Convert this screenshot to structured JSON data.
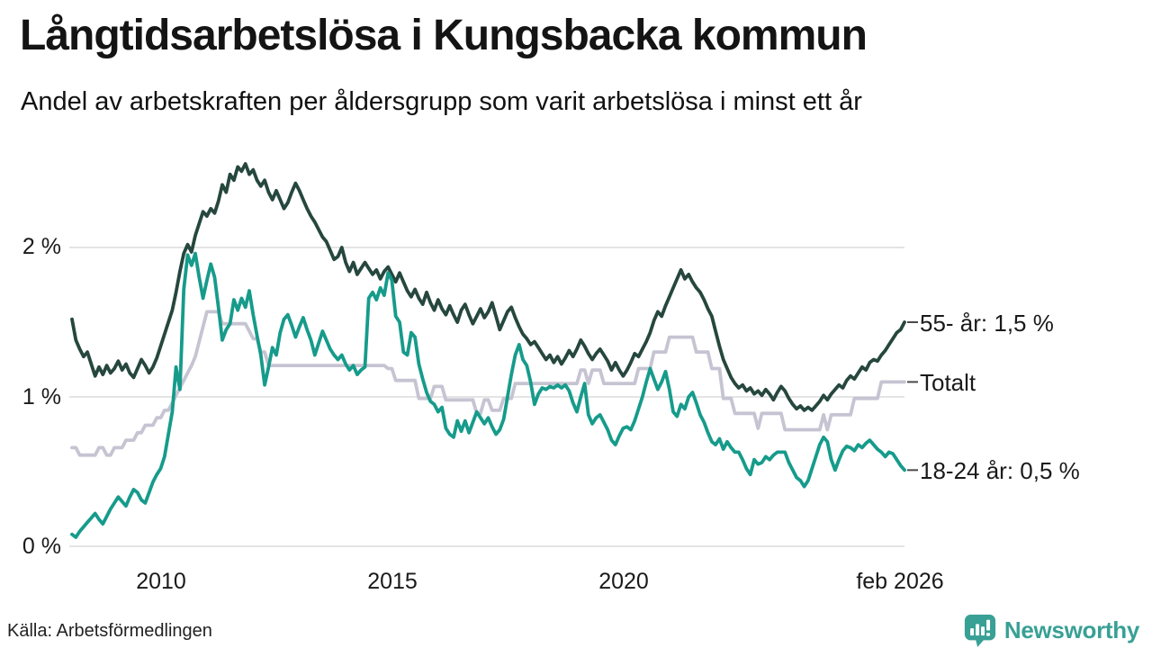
{
  "header": {
    "title": "Långtidsarbetslösa i Kungsbacka kommun",
    "subtitle": "Andel av arbetskraften per åldersgrupp som varit arbetslösa i minst ett år"
  },
  "footer": {
    "source": "Källa: Arbetsförmedlingen",
    "brand": "Newsworthy"
  },
  "colors": {
    "series_55": "#26473e",
    "series_total": "#c6c4d2",
    "series_18_24": "#169b8b",
    "gridline": "#dcdcdc",
    "label_tick": "#4a4a4a",
    "brand_teal": "#38a095"
  },
  "chart_data": {
    "type": "line",
    "title": "Långtidsarbetslösa i Kungsbacka kommun",
    "subtitle": "Andel av arbetskraften per åldersgrupp som varit arbetslösa i minst ett år",
    "grid": true,
    "legend_position": "right-edge-labels",
    "x_axis": {
      "tick_labels": [
        "2010",
        "2015",
        "2020",
        "feb 2026"
      ],
      "tick_values": [
        2010,
        2015,
        2020,
        2026.083
      ],
      "domain": [
        2008.083,
        2026.083
      ]
    },
    "y_axis": {
      "tick_labels": [
        "2 %",
        "1 %",
        "0 %"
      ],
      "tick_values": [
        2,
        1,
        0
      ],
      "domain": [
        0,
        2.69
      ]
    },
    "x_start": 2008.0833,
    "x_step_years": 0.08333,
    "draw_order": [
      1,
      0,
      2
    ],
    "series": [
      {
        "name": "55- år",
        "end_label": "55- år: 1,5 %",
        "end_value": "1,5 %",
        "color": "#26473e",
        "values": [
          1.52,
          1.38,
          1.32,
          1.27,
          1.3,
          1.22,
          1.14,
          1.2,
          1.15,
          1.21,
          1.16,
          1.19,
          1.24,
          1.18,
          1.22,
          1.16,
          1.13,
          1.19,
          1.25,
          1.21,
          1.16,
          1.2,
          1.26,
          1.34,
          1.42,
          1.5,
          1.58,
          1.7,
          1.84,
          1.96,
          2.02,
          1.97,
          2.08,
          2.16,
          2.24,
          2.21,
          2.26,
          2.23,
          2.31,
          2.42,
          2.37,
          2.49,
          2.45,
          2.54,
          2.51,
          2.56,
          2.49,
          2.52,
          2.45,
          2.41,
          2.45,
          2.37,
          2.32,
          2.38,
          2.32,
          2.26,
          2.3,
          2.37,
          2.43,
          2.38,
          2.32,
          2.26,
          2.21,
          2.17,
          2.12,
          2.07,
          2.04,
          1.98,
          1.92,
          1.94,
          2.0,
          1.9,
          1.84,
          1.9,
          1.82,
          1.86,
          1.9,
          1.86,
          1.82,
          1.85,
          1.79,
          1.84,
          1.87,
          1.82,
          1.77,
          1.83,
          1.77,
          1.71,
          1.67,
          1.72,
          1.66,
          1.62,
          1.7,
          1.63,
          1.58,
          1.65,
          1.59,
          1.55,
          1.61,
          1.55,
          1.5,
          1.58,
          1.62,
          1.55,
          1.49,
          1.54,
          1.59,
          1.53,
          1.57,
          1.63,
          1.54,
          1.45,
          1.51,
          1.57,
          1.6,
          1.53,
          1.47,
          1.42,
          1.39,
          1.35,
          1.37,
          1.33,
          1.29,
          1.25,
          1.28,
          1.23,
          1.27,
          1.22,
          1.26,
          1.31,
          1.27,
          1.32,
          1.38,
          1.34,
          1.29,
          1.25,
          1.29,
          1.32,
          1.28,
          1.24,
          1.18,
          1.23,
          1.18,
          1.14,
          1.18,
          1.23,
          1.29,
          1.27,
          1.32,
          1.37,
          1.43,
          1.51,
          1.57,
          1.54,
          1.61,
          1.67,
          1.73,
          1.79,
          1.85,
          1.79,
          1.82,
          1.77,
          1.73,
          1.7,
          1.65,
          1.59,
          1.54,
          1.44,
          1.34,
          1.25,
          1.19,
          1.13,
          1.09,
          1.06,
          1.08,
          1.04,
          1.06,
          1.02,
          1.04,
          1.01,
          1.05,
          1.02,
          0.98,
          1.03,
          1.07,
          1.04,
          0.99,
          0.95,
          0.92,
          0.94,
          0.91,
          0.93,
          0.91,
          0.94,
          0.97,
          1.01,
          0.98,
          1.02,
          1.05,
          1.08,
          1.06,
          1.11,
          1.14,
          1.12,
          1.16,
          1.2,
          1.18,
          1.23,
          1.25,
          1.24,
          1.28,
          1.31,
          1.35,
          1.39,
          1.43,
          1.45,
          1.5
        ]
      },
      {
        "name": "Totalt",
        "end_label": "Totalt",
        "end_value": "1,1 %",
        "color": "#c6c4d2",
        "values": [
          0.66,
          0.66,
          0.61,
          0.61,
          0.61,
          0.61,
          0.61,
          0.66,
          0.66,
          0.61,
          0.61,
          0.66,
          0.66,
          0.66,
          0.71,
          0.71,
          0.71,
          0.76,
          0.76,
          0.81,
          0.81,
          0.81,
          0.86,
          0.86,
          0.91,
          0.91,
          0.96,
          1.01,
          1.06,
          1.11,
          1.16,
          1.21,
          1.27,
          1.37,
          1.47,
          1.57,
          1.57,
          1.57,
          1.57,
          1.49,
          1.49,
          1.49,
          1.49,
          1.49,
          1.49,
          1.49,
          1.44,
          1.39,
          1.39,
          1.3,
          1.3,
          1.21,
          1.21,
          1.21,
          1.21,
          1.21,
          1.21,
          1.21,
          1.21,
          1.21,
          1.21,
          1.21,
          1.21,
          1.21,
          1.21,
          1.21,
          1.21,
          1.21,
          1.21,
          1.21,
          1.21,
          1.21,
          1.21,
          1.21,
          1.21,
          1.21,
          1.21,
          1.21,
          1.21,
          1.21,
          1.21,
          1.21,
          1.19,
          1.19,
          1.11,
          1.11,
          1.11,
          1.11,
          1.11,
          1.11,
          0.99,
          0.99,
          0.99,
          0.99,
          1.07,
          1.07,
          1.07,
          0.98,
          0.98,
          0.98,
          0.98,
          0.98,
          0.98,
          0.98,
          0.98,
          0.89,
          0.89,
          0.98,
          0.98,
          0.91,
          0.91,
          0.91,
          0.99,
          0.99,
          0.99,
          1.09,
          1.09,
          1.09,
          1.09,
          1.09,
          1.09,
          1.09,
          1.09,
          1.09,
          1.09,
          1.09,
          1.09,
          1.09,
          1.09,
          1.09,
          1.09,
          1.09,
          1.18,
          1.18,
          1.09,
          1.18,
          1.18,
          1.18,
          1.09,
          1.09,
          1.09,
          1.09,
          1.09,
          1.09,
          1.09,
          1.09,
          1.09,
          1.19,
          1.19,
          1.19,
          1.19,
          1.3,
          1.3,
          1.3,
          1.3,
          1.4,
          1.4,
          1.4,
          1.4,
          1.4,
          1.4,
          1.4,
          1.3,
          1.3,
          1.3,
          1.3,
          1.19,
          1.19,
          1.19,
          0.99,
          0.99,
          0.99,
          0.89,
          0.89,
          0.89,
          0.89,
          0.89,
          0.89,
          0.79,
          0.89,
          0.89,
          0.89,
          0.89,
          0.89,
          0.89,
          0.78,
          0.78,
          0.78,
          0.78,
          0.78,
          0.78,
          0.78,
          0.78,
          0.78,
          0.78,
          0.88,
          0.78,
          0.88,
          0.88,
          0.88,
          0.88,
          0.88,
          0.88,
          0.99,
          0.99,
          0.99,
          0.99,
          0.99,
          0.99,
          0.99,
          1.1,
          1.1,
          1.1,
          1.1,
          1.1,
          1.1,
          1.1
        ]
      },
      {
        "name": "18-24 år",
        "end_label": "18-24 år: 0,5 %",
        "end_value": "0,5 %",
        "color": "#169b8b",
        "values": [
          0.08,
          0.06,
          0.1,
          0.13,
          0.16,
          0.19,
          0.22,
          0.18,
          0.15,
          0.2,
          0.25,
          0.29,
          0.33,
          0.3,
          0.27,
          0.33,
          0.38,
          0.36,
          0.31,
          0.29,
          0.36,
          0.43,
          0.48,
          0.52,
          0.6,
          0.75,
          0.9,
          1.2,
          1.05,
          1.72,
          1.95,
          1.88,
          1.96,
          1.8,
          1.66,
          1.78,
          1.89,
          1.8,
          1.6,
          1.38,
          1.45,
          1.49,
          1.65,
          1.58,
          1.66,
          1.6,
          1.71,
          1.55,
          1.41,
          1.28,
          1.08,
          1.2,
          1.33,
          1.28,
          1.43,
          1.52,
          1.55,
          1.48,
          1.4,
          1.47,
          1.53,
          1.45,
          1.38,
          1.28,
          1.36,
          1.44,
          1.38,
          1.32,
          1.28,
          1.25,
          1.28,
          1.22,
          1.18,
          1.21,
          1.15,
          1.18,
          1.2,
          1.66,
          1.7,
          1.65,
          1.73,
          1.68,
          1.83,
          1.78,
          1.54,
          1.5,
          1.3,
          1.28,
          1.43,
          1.4,
          1.22,
          1.12,
          1.03,
          0.97,
          0.95,
          0.9,
          0.93,
          0.79,
          0.75,
          0.73,
          0.84,
          0.77,
          0.84,
          0.76,
          0.83,
          0.9,
          0.86,
          0.82,
          0.86,
          0.8,
          0.75,
          0.78,
          0.85,
          1.0,
          1.15,
          1.28,
          1.35,
          1.25,
          1.21,
          1.1,
          0.95,
          1.02,
          1.06,
          1.05,
          1.07,
          1.06,
          1.08,
          1.06,
          1.08,
          1.04,
          0.96,
          0.9,
          1.0,
          1.09,
          0.88,
          0.82,
          0.86,
          0.88,
          0.83,
          0.78,
          0.71,
          0.68,
          0.74,
          0.79,
          0.8,
          0.78,
          0.84,
          0.92,
          1.0,
          1.1,
          1.19,
          1.12,
          1.05,
          1.1,
          1.17,
          1.05,
          0.9,
          0.87,
          0.95,
          0.92,
          1.0,
          1.03,
          0.96,
          0.88,
          0.83,
          0.76,
          0.7,
          0.68,
          0.72,
          0.65,
          0.7,
          0.66,
          0.63,
          0.63,
          0.58,
          0.52,
          0.48,
          0.58,
          0.55,
          0.56,
          0.6,
          0.58,
          0.61,
          0.63,
          0.63,
          0.63,
          0.56,
          0.51,
          0.46,
          0.44,
          0.4,
          0.44,
          0.52,
          0.6,
          0.68,
          0.73,
          0.7,
          0.58,
          0.51,
          0.58,
          0.64,
          0.67,
          0.66,
          0.64,
          0.68,
          0.66,
          0.69,
          0.71,
          0.68,
          0.65,
          0.63,
          0.6,
          0.63,
          0.62,
          0.58,
          0.54,
          0.51
        ]
      }
    ]
  }
}
